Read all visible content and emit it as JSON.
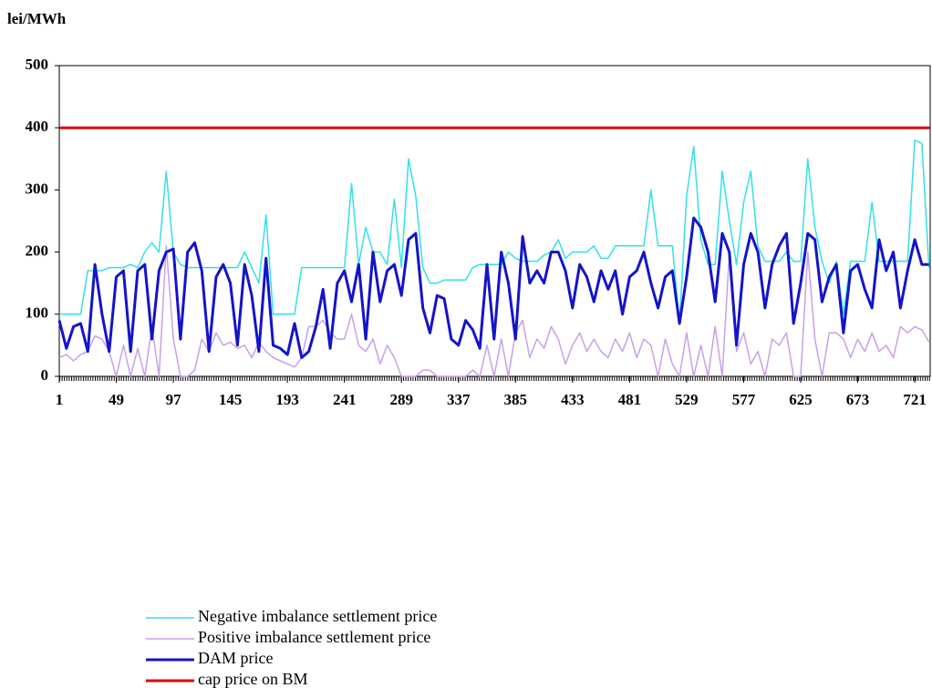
{
  "chart_data": {
    "type": "line",
    "y_label": "lei/MWh",
    "x": [
      1,
      7,
      13,
      19,
      25,
      31,
      37,
      43,
      49,
      55,
      61,
      67,
      73,
      79,
      85,
      91,
      97,
      103,
      109,
      115,
      121,
      127,
      133,
      139,
      145,
      151,
      157,
      163,
      169,
      175,
      181,
      187,
      193,
      199,
      205,
      211,
      217,
      223,
      229,
      235,
      241,
      247,
      253,
      259,
      265,
      271,
      277,
      283,
      289,
      295,
      301,
      307,
      313,
      319,
      325,
      331,
      337,
      343,
      349,
      355,
      361,
      367,
      373,
      379,
      385,
      391,
      397,
      403,
      409,
      415,
      421,
      427,
      433,
      439,
      445,
      451,
      457,
      463,
      469,
      475,
      481,
      487,
      493,
      499,
      505,
      511,
      517,
      523,
      529,
      535,
      541,
      547,
      553,
      559,
      565,
      571,
      577,
      583,
      589,
      595,
      601,
      607,
      613,
      619,
      625,
      631,
      637,
      643,
      649,
      655,
      661,
      667,
      673,
      679,
      685,
      691,
      697,
      703,
      709,
      715,
      721,
      727,
      733
    ],
    "xlim": [
      1,
      734
    ],
    "xticks": [
      1,
      49,
      97,
      145,
      193,
      241,
      289,
      337,
      385,
      433,
      481,
      529,
      577,
      625,
      673,
      721
    ],
    "ylim": [
      0,
      500
    ],
    "yticks": [
      0,
      100,
      200,
      300,
      400,
      500
    ],
    "series": [
      {
        "name": "Negative imbalance settlement price",
        "color": "#33e0e8",
        "width": 1.5,
        "values": [
          100,
          100,
          100,
          100,
          170,
          170,
          170,
          175,
          175,
          175,
          180,
          175,
          200,
          215,
          200,
          330,
          200,
          180,
          175,
          175,
          175,
          175,
          175,
          175,
          175,
          175,
          200,
          175,
          150,
          260,
          100,
          100,
          100,
          100,
          175,
          175,
          175,
          175,
          175,
          175,
          175,
          310,
          180,
          240,
          200,
          200,
          180,
          285,
          175,
          350,
          290,
          175,
          150,
          150,
          155,
          155,
          155,
          155,
          175,
          180,
          180,
          180,
          180,
          200,
          190,
          185,
          185,
          185,
          195,
          200,
          220,
          190,
          200,
          200,
          200,
          210,
          190,
          190,
          210,
          210,
          210,
          210,
          210,
          300,
          210,
          210,
          210,
          85,
          290,
          370,
          220,
          180,
          180,
          330,
          250,
          180,
          280,
          330,
          210,
          185,
          185,
          185,
          200,
          185,
          185,
          350,
          240,
          185,
          150,
          185,
          100,
          185,
          185,
          185,
          280,
          185,
          185,
          185,
          185,
          185,
          380,
          375,
          175
        ]
      },
      {
        "name": "Positive imbalance settlement price",
        "color": "#c8a0e8",
        "width": 1.5,
        "values": [
          30,
          35,
          25,
          35,
          40,
          65,
          60,
          40,
          0,
          50,
          0,
          45,
          0,
          80,
          0,
          210,
          60,
          0,
          0,
          10,
          60,
          40,
          70,
          50,
          55,
          45,
          50,
          30,
          55,
          40,
          30,
          25,
          20,
          15,
          30,
          80,
          80,
          90,
          70,
          60,
          60,
          100,
          50,
          40,
          60,
          20,
          50,
          30,
          0,
          0,
          0,
          10,
          10,
          0,
          0,
          0,
          0,
          0,
          10,
          0,
          50,
          0,
          60,
          0,
          70,
          90,
          30,
          60,
          45,
          80,
          60,
          20,
          50,
          70,
          40,
          60,
          40,
          30,
          60,
          40,
          70,
          30,
          60,
          50,
          0,
          60,
          20,
          0,
          70,
          0,
          50,
          0,
          80,
          0,
          200,
          40,
          70,
          20,
          40,
          0,
          60,
          50,
          70,
          0,
          0,
          200,
          60,
          0,
          70,
          70,
          60,
          30,
          60,
          40,
          70,
          40,
          50,
          30,
          80,
          70,
          80,
          75,
          55
        ]
      },
      {
        "name": "DAM price",
        "color": "#1414c8",
        "width": 3,
        "values": [
          90,
          45,
          80,
          85,
          40,
          180,
          100,
          40,
          160,
          170,
          40,
          170,
          180,
          60,
          170,
          200,
          205,
          60,
          200,
          215,
          170,
          40,
          160,
          180,
          150,
          50,
          180,
          130,
          40,
          190,
          50,
          45,
          35,
          85,
          30,
          40,
          80,
          140,
          45,
          150,
          170,
          120,
          180,
          60,
          200,
          120,
          170,
          180,
          130,
          220,
          230,
          110,
          70,
          130,
          125,
          60,
          50,
          90,
          75,
          45,
          180,
          60,
          200,
          150,
          60,
          225,
          150,
          170,
          150,
          200,
          200,
          170,
          110,
          180,
          160,
          120,
          170,
          140,
          170,
          100,
          160,
          170,
          200,
          150,
          110,
          160,
          170,
          85,
          160,
          255,
          240,
          200,
          120,
          230,
          200,
          50,
          180,
          230,
          200,
          110,
          180,
          210,
          230,
          85,
          150,
          230,
          220,
          120,
          160,
          180,
          70,
          170,
          180,
          140,
          110,
          220,
          170,
          200,
          110,
          170,
          220,
          180,
          180
        ]
      },
      {
        "name": "cap price on BM",
        "color": "#e00000",
        "width": 3,
        "x": [
          1,
          734
        ],
        "values": [
          400,
          400
        ]
      }
    ]
  }
}
